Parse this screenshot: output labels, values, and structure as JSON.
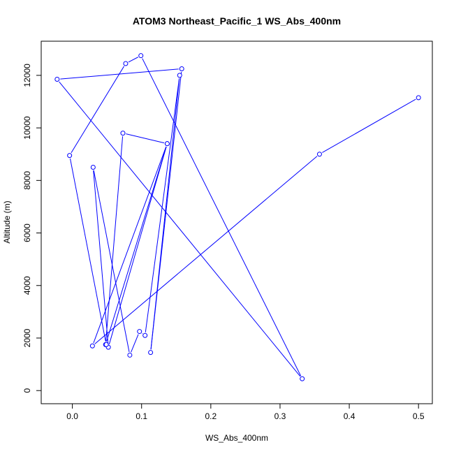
{
  "chart_data": {
    "type": "line",
    "title": "ATOM3 Northeast_Pacific_1 WS_Abs_400nm",
    "xlabel": "WS_Abs_400nm",
    "ylabel": "Altitude (m)",
    "xlim": [
      -0.045,
      0.52
    ],
    "ylim": [
      -500,
      13300
    ],
    "x_ticks": [
      0.0,
      0.1,
      0.2,
      0.3,
      0.4,
      0.5
    ],
    "x_tick_labels": [
      "0.0",
      "0.1",
      "0.2",
      "0.3",
      "0.4",
      "0.5"
    ],
    "y_ticks": [
      0,
      2000,
      4000,
      6000,
      8000,
      10000,
      12000
    ],
    "y_tick_labels": [
      "0",
      "2000",
      "4000",
      "6000",
      "8000",
      "10000",
      "12000"
    ],
    "colors": {
      "series": "#0000ff",
      "point_fill": "#ffffff",
      "axis": "#000000"
    },
    "series": [
      {
        "x": [
          0.5,
          0.357,
          0.029,
          0.137,
          0.048,
          0.073,
          0.137,
          0.052,
          0.03,
          0.083,
          0.097,
          0.105,
          0.155,
          0.113,
          0.158,
          -0.022,
          0.332,
          0.099,
          0.077,
          -0.004,
          0.049
        ],
        "y": [
          11150,
          9000,
          1700,
          9400,
          1750,
          9800,
          9400,
          1650,
          8500,
          1350,
          2250,
          2100,
          12000,
          1450,
          12250,
          11850,
          450,
          12750,
          12450,
          8950,
          1750
        ]
      }
    ]
  }
}
